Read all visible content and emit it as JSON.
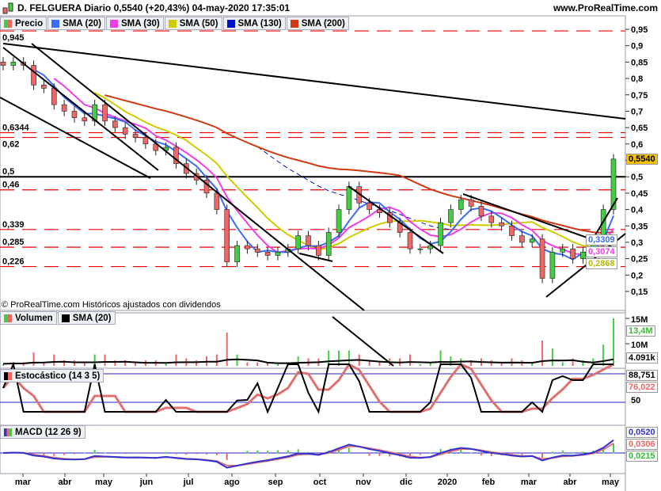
{
  "header": {
    "title": "D. FELGUERA Diario 0,5540 (+20,43%) 04-may-2020 17:35:01",
    "site": "www.ProRealTime.com",
    "copyright": "© ProRealTime.com  Históricos ajustados con dividendos"
  },
  "legend": [
    {
      "label": "Precio",
      "color": "#d66"
    },
    {
      "label": "SMA (20)",
      "color": "#3a6cf4"
    },
    {
      "label": "SMA (30)",
      "color": "#f23ce8"
    },
    {
      "label": "SMA (50)",
      "color": "#cccc00"
    },
    {
      "label": "SMA (130)",
      "color": "#0010c8"
    },
    {
      "label": "SMA (200)",
      "color": "#d03a10"
    }
  ],
  "panels": {
    "volume": {
      "legend": [
        "Volumen",
        "SMA (20)"
      ],
      "last": "13,4M",
      "sma": "4.091k",
      "ticks": [
        "15M",
        "10M"
      ]
    },
    "stochastic": {
      "legend": "Estocástico (14 3 5)",
      "k": "88,751",
      "d": "76,022",
      "ticks": [
        "50"
      ]
    },
    "macd": {
      "legend": "MACD (12 26 9)",
      "v1": "0,0520",
      "v2": "0,0306",
      "v3": "0,0215"
    }
  },
  "price_badges": [
    {
      "text": "0,5540",
      "bg": "#f5c000",
      "fg": "#000"
    },
    {
      "text": "0,3309",
      "bg": "#fff",
      "fg": "#3a6cf4"
    },
    {
      "text": "0,3074",
      "bg": "#fff",
      "fg": "#f23ce8"
    },
    {
      "text": "0,2868",
      "bg": "#fff",
      "fg": "#b8b800"
    }
  ],
  "chart_data": {
    "type": "candlestick",
    "title": "D. FELGUERA Diario",
    "ylim": [
      0.12,
      0.97
    ],
    "y_ticks": [
      0.95,
      0.9,
      0.85,
      0.8,
      0.75,
      0.7,
      0.65,
      0.6,
      0.55,
      0.5,
      0.45,
      0.4,
      0.35,
      0.3,
      0.25,
      0.2,
      0.15
    ],
    "y_tick_labels": [
      "0,95",
      "0,9",
      "0,85",
      "0,8",
      "0,75",
      "0,7",
      "0,65",
      "0,6",
      "",
      "0,5",
      "0,45",
      "0,4",
      "0,35",
      "0,3",
      "0,25",
      "0,2",
      "0,15"
    ],
    "x_labels": [
      "mar",
      "abr",
      "may",
      "jun",
      "jul",
      "ago",
      "sep",
      "oct",
      "nov",
      "dic",
      "2020",
      "feb",
      "mar",
      "abr",
      "may"
    ],
    "levels": [
      {
        "value": 0.945,
        "label": "0,945"
      },
      {
        "value": 0.6344,
        "label": "0,6344"
      },
      {
        "value": 0.62,
        "label": "0,62"
      },
      {
        "value": 0.5,
        "label": "0,5",
        "solid": true
      },
      {
        "value": 0.46,
        "label": "0,46"
      },
      {
        "value": 0.339,
        "label": "0,339"
      },
      {
        "value": 0.285,
        "label": "0,285"
      },
      {
        "value": 0.226,
        "label": "0,226"
      }
    ],
    "closes": [
      0.84,
      0.85,
      0.84,
      0.78,
      0.77,
      0.72,
      0.7,
      0.68,
      0.67,
      0.72,
      0.67,
      0.65,
      0.63,
      0.62,
      0.6,
      0.58,
      0.59,
      0.54,
      0.51,
      0.49,
      0.45,
      0.4,
      0.24,
      0.29,
      0.28,
      0.27,
      0.26,
      0.27,
      0.28,
      0.32,
      0.29,
      0.26,
      0.33,
      0.4,
      0.47,
      0.42,
      0.4,
      0.39,
      0.36,
      0.33,
      0.28,
      0.28,
      0.29,
      0.36,
      0.4,
      0.43,
      0.41,
      0.38,
      0.36,
      0.35,
      0.32,
      0.3,
      0.31,
      0.19,
      0.27,
      0.28,
      0.25,
      0.27,
      0.3,
      0.4,
      0.554
    ]
  }
}
